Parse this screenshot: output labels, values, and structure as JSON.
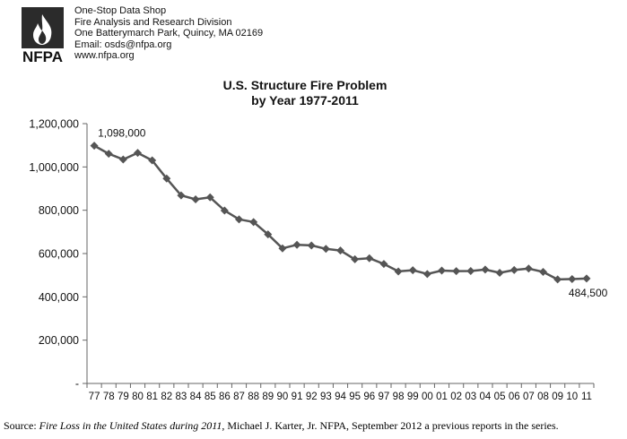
{
  "header": {
    "logo_text": "NFPA",
    "lines": [
      "One-Stop Data Shop",
      "Fire Analysis and Research Division",
      "One Batterymarch Park, Quincy, MA 02169",
      "Email: osds@nfpa.org",
      "www.nfpa.org"
    ]
  },
  "source": {
    "prefix": "Source: ",
    "italic": "Fire Loss in the United States during 2011",
    "suffix": ", Michael J. Karter, Jr. NFPA, September 2012 a previous reports in the series."
  },
  "colors": {
    "line": "#555555",
    "marker": "#555555",
    "axis": "#666666",
    "logo_bg": "#2b2b2b"
  },
  "chart_data": {
    "type": "line",
    "title": "U.S. Structure Fire Problem",
    "subtitle": "by Year 1977-2011",
    "xlabel": "",
    "ylabel": "",
    "ylim": [
      0,
      1200000
    ],
    "yticks": [
      0,
      200000,
      400000,
      600000,
      800000,
      1000000,
      1200000
    ],
    "ytick_labels": [
      "-",
      "200,000",
      "400,000",
      "600,000",
      "800,000",
      "1,000,000",
      "1,200,000"
    ],
    "grid": false,
    "categories": [
      "77",
      "78",
      "79",
      "80",
      "81",
      "82",
      "83",
      "84",
      "85",
      "86",
      "87",
      "88",
      "89",
      "90",
      "91",
      "92",
      "93",
      "94",
      "95",
      "96",
      "97",
      "98",
      "99",
      "00",
      "01",
      "02",
      "03",
      "04",
      "05",
      "06",
      "07",
      "08",
      "09",
      "10",
      "11"
    ],
    "series": [
      {
        "values": [
          1098000,
          1061000,
          1034500,
          1065000,
          1030500,
          946500,
          868500,
          850500,
          859500,
          798500,
          758000,
          745500,
          688500,
          624000,
          640500,
          637500,
          621500,
          614000,
          573500,
          578500,
          552000,
          517500,
          523000,
          505500,
          521500,
          519000,
          519500,
          526000,
          511000,
          524000,
          530500,
          515000,
          480500,
          482000,
          484500
        ]
      }
    ],
    "annotations": [
      {
        "index": 0,
        "text": "1,098,000"
      },
      {
        "index": 34,
        "text": "484,500"
      }
    ]
  }
}
